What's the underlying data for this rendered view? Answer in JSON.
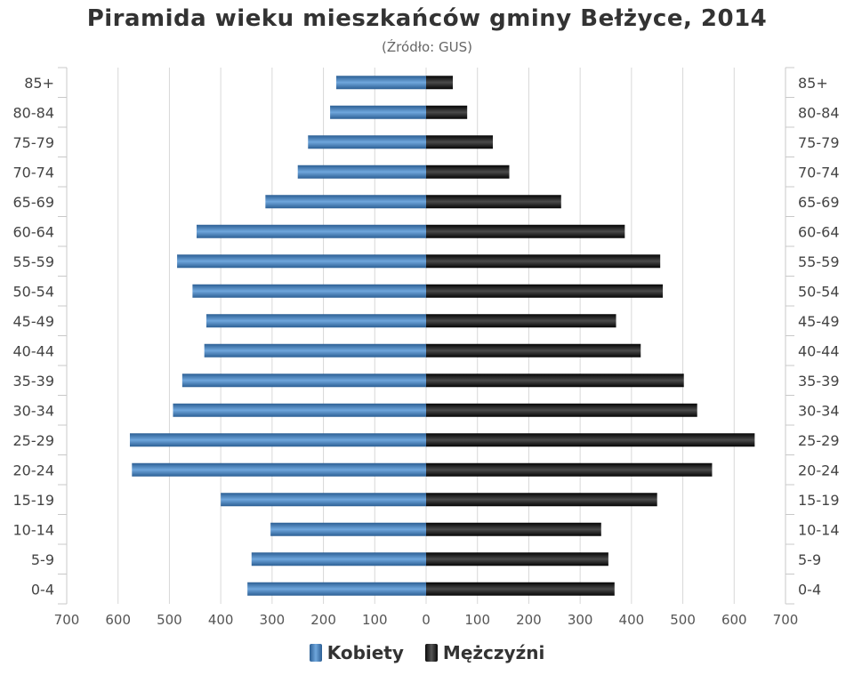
{
  "chart_data": {
    "type": "bar",
    "orientation": "horizontal-pyramid",
    "title": "Piramida wieku mieszkańców gminy Bełżyce, 2014",
    "subtitle": "(Źródło: GUS)",
    "categories": [
      "85+",
      "80-84",
      "75-79",
      "70-74",
      "65-69",
      "60-64",
      "55-59",
      "50-54",
      "45-49",
      "40-44",
      "35-39",
      "30-34",
      "25-29",
      "20-24",
      "15-19",
      "10-14",
      "5-9",
      "0-4"
    ],
    "series": [
      {
        "name": "Kobiety",
        "color": "#4a86c5",
        "values": [
          175,
          187,
          230,
          250,
          313,
          447,
          485,
          455,
          428,
          432,
          475,
          493,
          577,
          573,
          400,
          303,
          340,
          348
        ]
      },
      {
        "name": "Mężczyźni",
        "color": "#1a1a1a",
        "values": [
          52,
          80,
          130,
          162,
          263,
          387,
          456,
          461,
          370,
          418,
          502,
          528,
          640,
          557,
          450,
          341,
          355,
          367
        ]
      }
    ],
    "x_ticks": [
      "700",
      "600",
      "500",
      "400",
      "300",
      "200",
      "100",
      "0",
      "100",
      "200",
      "300",
      "400",
      "500",
      "600",
      "700"
    ],
    "xlim": [
      -700,
      700
    ],
    "grid": true,
    "legend_position": "bottom-center"
  }
}
